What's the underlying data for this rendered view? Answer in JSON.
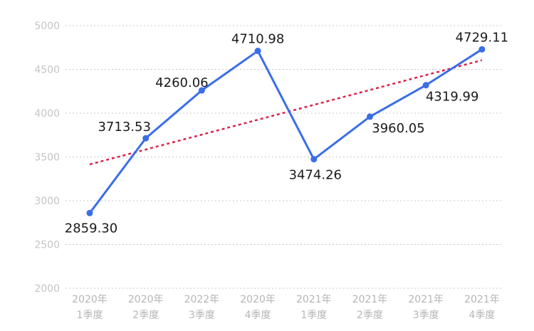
{
  "chart_data": {
    "type": "line",
    "title": "",
    "xlabel": "",
    "ylabel": "",
    "ylim": [
      2000,
      5000
    ],
    "yticks": [
      2000,
      2500,
      3000,
      3500,
      4000,
      4500,
      5000
    ],
    "grid": true,
    "legend": "none",
    "categories": [
      [
        "2020年",
        "1季度"
      ],
      [
        "2020年",
        "2季度"
      ],
      [
        "2022年",
        "3季度"
      ],
      [
        "2020年",
        "4季度"
      ],
      [
        "2021年",
        "1季度"
      ],
      [
        "2021年",
        "2季度"
      ],
      [
        "2021年",
        "3季度"
      ],
      [
        "2021年",
        "4季度"
      ]
    ],
    "series": [
      {
        "values": [
          2859.3,
          3713.53,
          4260.06,
          4710.98,
          3474.26,
          3960.05,
          4319.99,
          4729.11
        ],
        "labels": [
          "2859.30",
          "3713.53",
          "4260.06",
          "4710.98",
          "3474.26",
          "3960.05",
          "4319.99",
          "4729.11"
        ],
        "color": "#3a6ee8",
        "style": "solid-with-markers"
      },
      {
        "values": [
          3415,
          3585,
          3755,
          3925,
          4095,
          4265,
          4435,
          4605
        ],
        "color": "#d9244a",
        "style": "dotted-trendline"
      }
    ]
  }
}
